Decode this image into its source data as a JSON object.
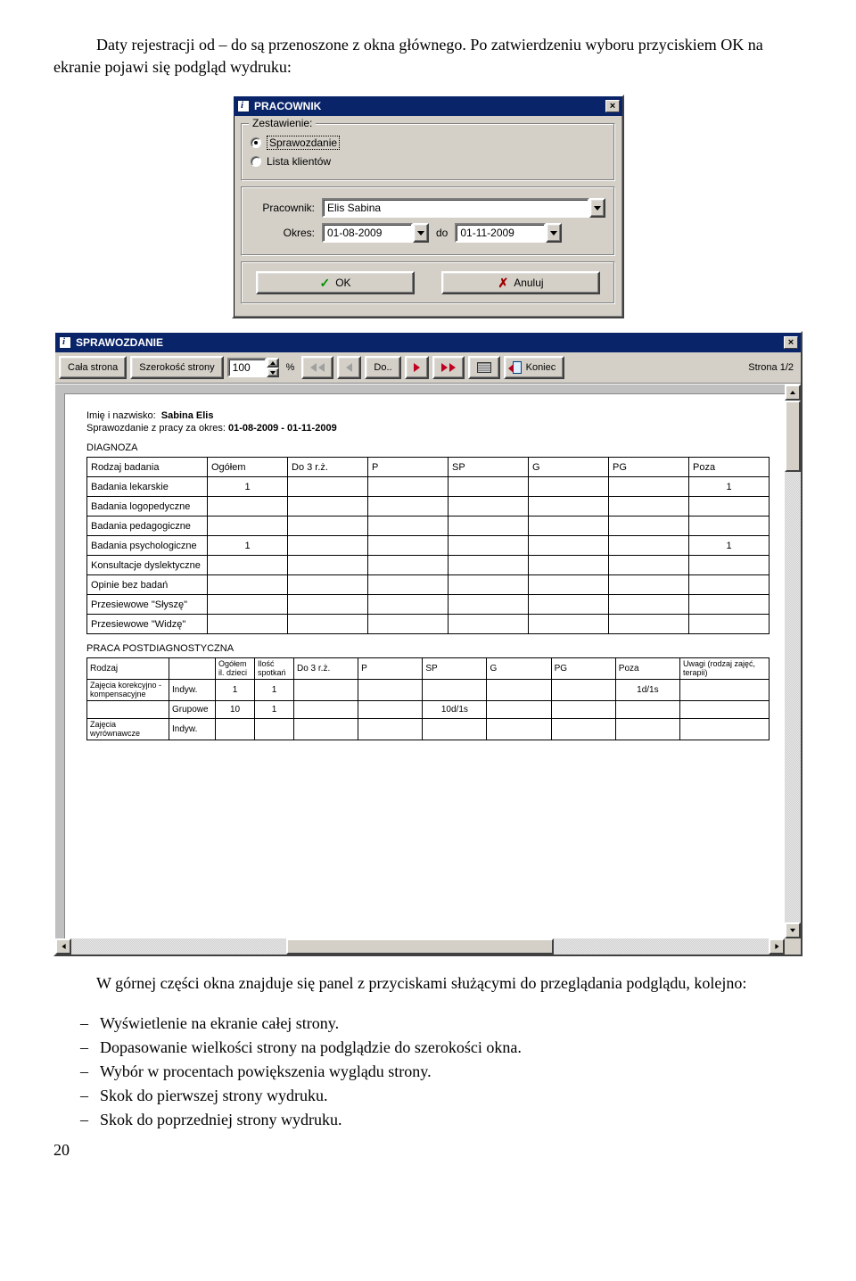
{
  "paragraphs": {
    "p1": "Daty rejestracji od – do są przenoszone z okna głównego. Po zatwierdzeniu wyboru przyciskiem OK na ekranie pojawi się podgląd wydruku:",
    "p2": "W górnej części okna znajduje się panel z przyciskami służącymi do przeglądania podglądu, kolejno:",
    "bullets": [
      "Wyświetlenie na ekranie całej strony.",
      "Dopasowanie wielkości strony na podglądzie do szerokości okna.",
      "Wybór w procentach powiększenia wyglądu strony.",
      "Skok do pierwszej strony wydruku.",
      "Skok do poprzedniej strony wydruku."
    ],
    "page_num": "20"
  },
  "dlg": {
    "title": "PRACOWNIK",
    "group_legend": "Zestawienie:",
    "radio1": "Sprawozdanie",
    "radio2": "Lista klientów",
    "field_pracownik_label": "Pracownik:",
    "field_pracownik_value": "Elis Sabina",
    "field_okres_label": "Okres:",
    "date_from": "01-08-2009",
    "do_label": "do",
    "date_to": "01-11-2009",
    "ok": "OK",
    "cancel": "Anuluj"
  },
  "rep": {
    "title": "SPRAWOZDANIE",
    "tb_whole": "Cała strona",
    "tb_width": "Szerokość strony",
    "zoom_value": "100",
    "percent": "%",
    "go": "Do..",
    "end": "Koniec",
    "page_indicator": "Strona 1/2",
    "name_label": "Imię i nazwisko:",
    "name_value": "Sabina Elis",
    "period_label": "Sprawozdanie z pracy za okres:",
    "period_value": "01-08-2009 - 01-11-2009",
    "section1": "DIAGNOZA",
    "t1_headers": [
      "Rodzaj badania",
      "Ogółem",
      "Do 3 r.ż.",
      "P",
      "SP",
      "G",
      "PG",
      "Poza"
    ],
    "t1_rows": [
      [
        "Badania lekarskie",
        "1",
        "",
        "",
        "",
        "",
        "",
        "1"
      ],
      [
        "Badania logopedyczne",
        "",
        "",
        "",
        "",
        "",
        "",
        ""
      ],
      [
        "Badania pedagogiczne",
        "",
        "",
        "",
        "",
        "",
        "",
        ""
      ],
      [
        "Badania psychologiczne",
        "1",
        "",
        "",
        "",
        "",
        "",
        "1"
      ],
      [
        "Konsultacje dyslektyczne",
        "",
        "",
        "",
        "",
        "",
        "",
        ""
      ],
      [
        "Opinie bez badań",
        "",
        "",
        "",
        "",
        "",
        "",
        ""
      ],
      [
        "Przesiewowe \"Słyszę\"",
        "",
        "",
        "",
        "",
        "",
        "",
        ""
      ],
      [
        "Przesiewowe \"Widzę\"",
        "",
        "",
        "",
        "",
        "",
        "",
        ""
      ]
    ],
    "section2": "PRACA POSTDIAGNOSTYCZNA",
    "t2_headers": [
      "Rodzaj",
      "",
      "Ogółem il. dzieci",
      "Ilość spotkań",
      "Do 3 r.ż.",
      "P",
      "SP",
      "G",
      "PG",
      "Poza",
      "Uwagi (rodzaj zajęć, terapii)"
    ],
    "t2_rows": [
      [
        "Zajęcia korekcyjno - kompensacyjne",
        "Indyw.",
        "1",
        "1",
        "",
        "",
        "",
        "",
        "",
        "1d/1s",
        ""
      ],
      [
        "",
        "Grupowe",
        "10",
        "1",
        "",
        "",
        "10d/1s",
        "",
        "",
        "",
        ""
      ],
      [
        "Zajęcia wyrównawcze",
        "Indyw.",
        "",
        "",
        "",
        "",
        "",
        "",
        "",
        "",
        ""
      ]
    ]
  }
}
